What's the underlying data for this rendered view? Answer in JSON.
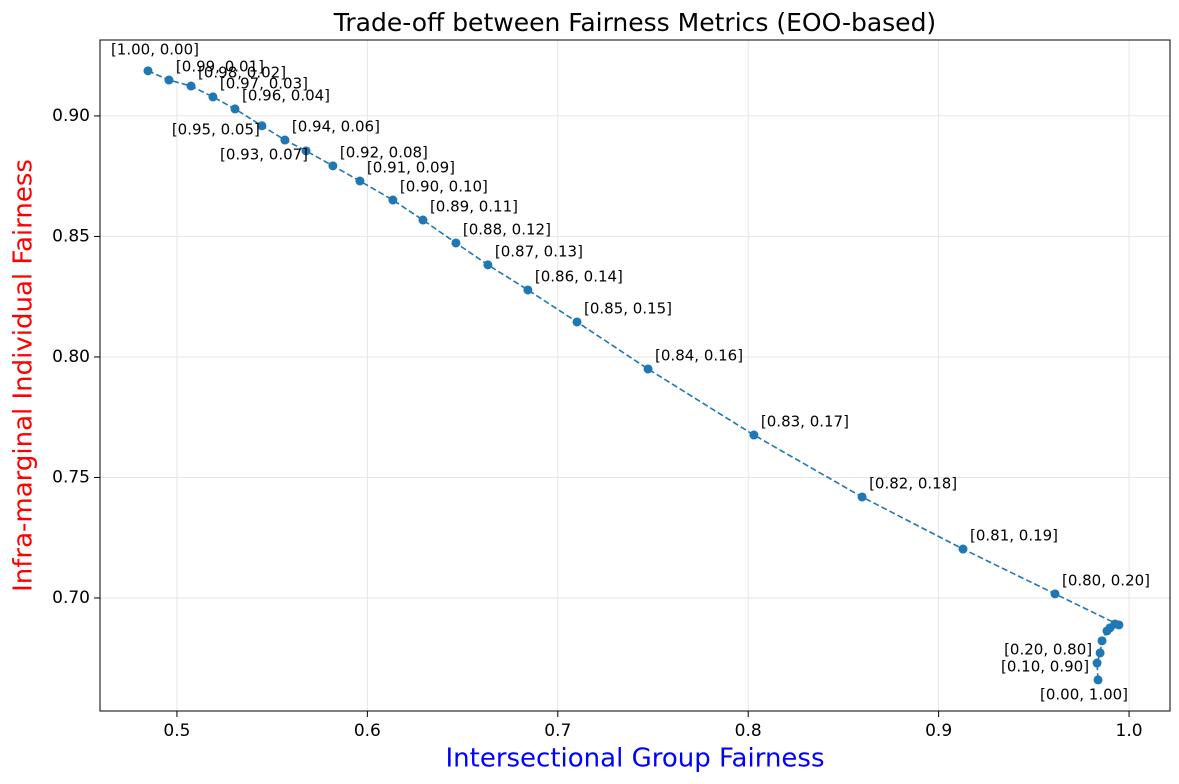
{
  "chart_data": {
    "type": "line",
    "title": "Trade-off between Fairness Metrics (EOO-based)",
    "xlabel": "Intersectional Group Fairness",
    "xlabel_color": "#0000ff",
    "ylabel": "Infra-marginal Individual Fairness",
    "ylabel_color": "#ff0000",
    "x": [
      0.4848,
      0.4958,
      0.5074,
      0.5189,
      0.5305,
      0.5446,
      0.5567,
      0.5678,
      0.5819,
      0.5961,
      0.6134,
      0.6292,
      0.6465,
      0.6633,
      0.6843,
      0.7101,
      0.7474,
      0.803,
      0.8598,
      0.9128,
      0.9611,
      0.9947,
      0.9926,
      0.99,
      0.9884,
      0.9858,
      0.9848,
      0.9832,
      0.9837
    ],
    "series": [
      {
        "color": "#1f77b4",
        "line_style": "dashed",
        "values": [
          0.9187,
          0.9149,
          0.9124,
          0.9079,
          0.9029,
          0.8959,
          0.89,
          0.8855,
          0.8793,
          0.873,
          0.8651,
          0.8568,
          0.8473,
          0.8382,
          0.8278,
          0.8145,
          0.795,
          0.7676,
          0.7419,
          0.7203,
          0.7017,
          0.6888,
          0.6892,
          0.6876,
          0.6863,
          0.6822,
          0.6772,
          0.673,
          0.666
        ],
        "point_labels": [
          "[1.00, 0.00]",
          "[0.99, 0.01]",
          "[0.98, 0.02]",
          "[0.97, 0.03]",
          "[0.96, 0.04]",
          "[0.95, 0.05]",
          "[0.94, 0.06]",
          "[0.93, 0.07]",
          "[0.92, 0.08]",
          "[0.91, 0.09]",
          "[0.90, 0.10]",
          "[0.89, 0.11]",
          "[0.88, 0.12]",
          "[0.87, 0.13]",
          "[0.86, 0.14]",
          "[0.85, 0.15]",
          "[0.84, 0.16]",
          "[0.83, 0.17]",
          "[0.82, 0.18]",
          "[0.81, 0.19]",
          "[0.80, 0.20]",
          null,
          null,
          null,
          null,
          null,
          "[0.20, 0.80]",
          "[0.10, 0.90]",
          "[0.00, 1.00]"
        ]
      }
    ],
    "xlim": [
      0.4596,
      1.0215
    ],
    "xticks": [
      0.5,
      0.6,
      0.7,
      0.8,
      0.9,
      {
        "value": 1,
        "label": "1.0"
      }
    ],
    "ylim": [
      0.6531,
      0.9315
    ],
    "yticks": [
      {
        "value": 0.7,
        "label": "0.70"
      },
      0.75,
      {
        "value": 0.8,
        "label": "0.80"
      },
      0.85,
      {
        "value": 0.9,
        "label": "0.90"
      }
    ],
    "grid": true
  }
}
